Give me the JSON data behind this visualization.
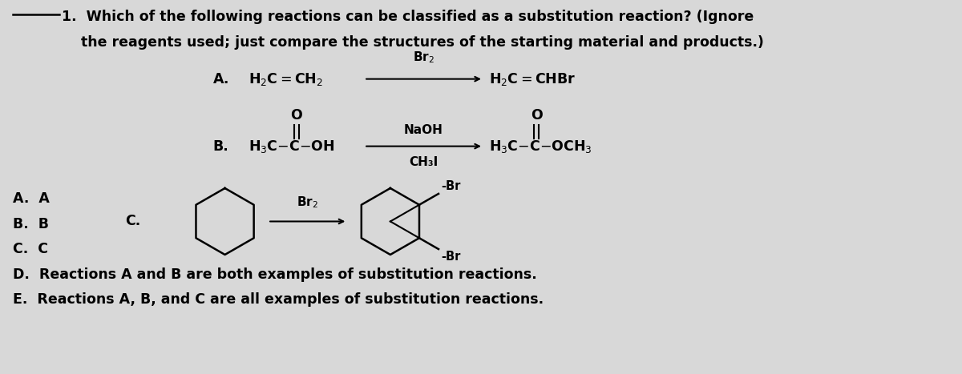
{
  "bg_color": "#d8d8d8",
  "text_color": "#000000",
  "title_line1": "1.  Which of the following reactions can be classified as a substitution reaction? (Ignore",
  "title_line2": "    the reagents used; just compare the structures of the starting material and products.)",
  "answer_a": "A.  A",
  "answer_b": "B.  B",
  "answer_c": "C.  C",
  "answer_d": "D.  Reactions A and B are both examples of substitution reactions.",
  "answer_e": "E.  Reactions A, B, and C are all examples of substitution reactions.",
  "label_A": "A.",
  "label_B": "B.",
  "label_C": "C.",
  "rxn_b_reagent1": "NaOH",
  "rxn_b_reagent2": "CH₃I"
}
